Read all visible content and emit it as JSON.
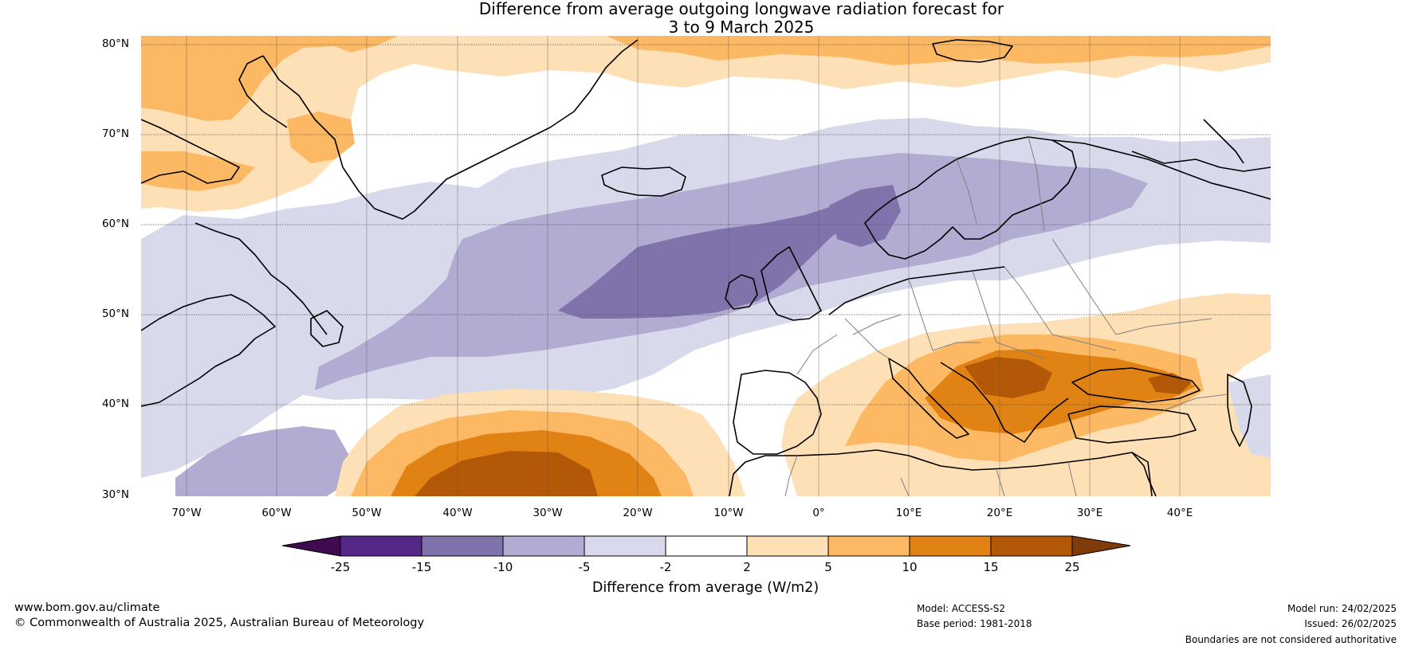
{
  "title": {
    "line1": "Difference from average outgoing longwave radiation forecast for",
    "line2": "3 to 9 March 2025"
  },
  "map": {
    "latitude_labels": [
      "80°N",
      "70°N",
      "60°N",
      "50°N",
      "40°N",
      "30°N"
    ],
    "longitude_labels": [
      "70°W",
      "60°W",
      "50°W",
      "40°W",
      "30°W",
      "20°W",
      "10°W",
      "0°",
      "10°E",
      "20°E",
      "30°E",
      "40°E"
    ],
    "extent": {
      "lon_min": -75,
      "lon_max": 50,
      "lat_min": 30,
      "lat_max": 81
    },
    "background_color": "#ffffff",
    "coastline_color": "#000000",
    "border_color": "#808080"
  },
  "colorbar": {
    "title": "Difference from average (W/m2)",
    "ticks": [
      "-25",
      "-15",
      "-10",
      "-5",
      "-2",
      "2",
      "5",
      "10",
      "15",
      "25"
    ],
    "colors": [
      "#3f0a4f",
      "#542788",
      "#8073ac",
      "#b2abd2",
      "#d8daeb",
      "#ffffff",
      "#fee0b6",
      "#fdb863",
      "#e08214",
      "#b35806",
      "#7f3b08"
    ]
  },
  "footer": {
    "website": "www.bom.gov.au/climate",
    "copyright": "© Commonwealth of Australia 2025, Australian Bureau of Meteorology",
    "model": "Model: ACCESS-S2",
    "base_period": "Base period: 1981-2018",
    "model_run": "Model run: 24/02/2025",
    "issued": "Issued: 26/02/2025",
    "disclaimer": "Boundaries are not considered authoritative"
  }
}
